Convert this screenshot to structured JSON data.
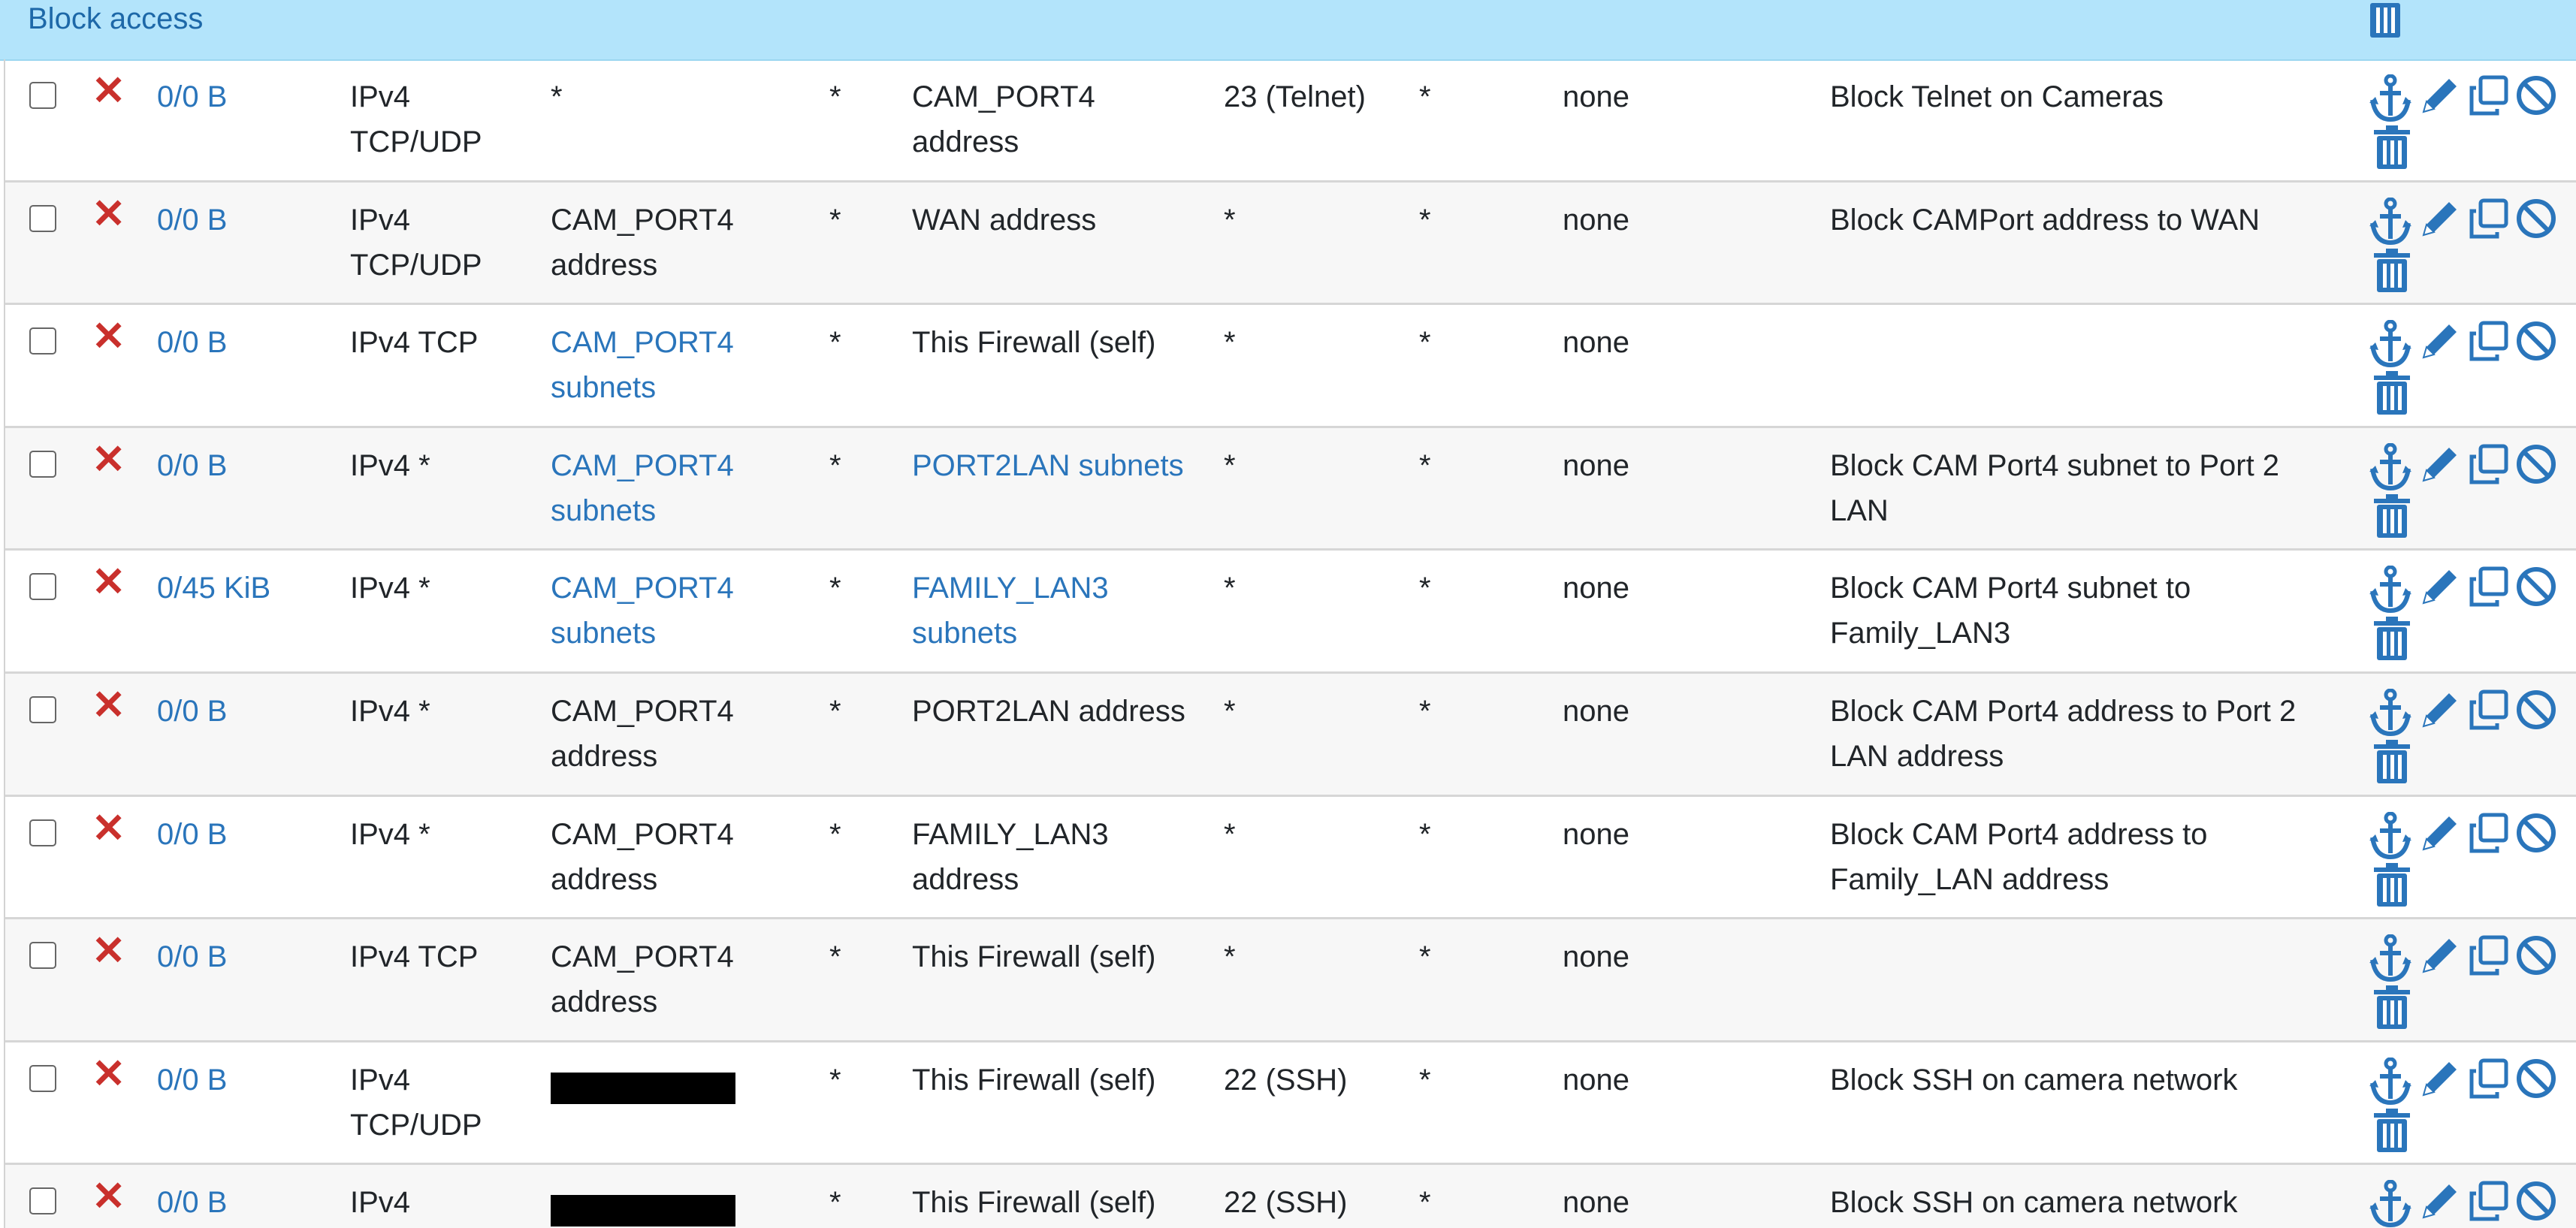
{
  "group": {
    "title": "Block access"
  },
  "icons": {
    "block": "x-icon",
    "anchor": "anchor-icon",
    "edit": "pencil-icon",
    "copy": "copy-icon",
    "disable": "ban-icon",
    "delete": "trash-icon"
  },
  "colors": {
    "accent": "#2a75bb",
    "block": "#c9302c",
    "header_bg": "#b3e4fb"
  },
  "rows": [
    {
      "states": "0/0 B",
      "protocol": "IPv4 TCP/UDP",
      "source": "*",
      "source_link": false,
      "port": "*",
      "destination": "CAM_PORT4 address",
      "dest_link": false,
      "dport": "23 (Telnet)",
      "gateway": "*",
      "queue": "none",
      "schedule": "",
      "description": "Block Telnet on Cameras"
    },
    {
      "states": "0/0 B",
      "protocol": "IPv4 TCP/UDP",
      "source": "CAM_PORT4 address",
      "source_link": false,
      "port": "*",
      "destination": "WAN address",
      "dest_link": false,
      "dport": "*",
      "gateway": "*",
      "queue": "none",
      "schedule": "",
      "description": "Block CAMPort address to WAN"
    },
    {
      "states": "0/0 B",
      "protocol": "IPv4 TCP",
      "source": "CAM_PORT4 subnets",
      "source_link": true,
      "port": "*",
      "destination": "This Firewall (self)",
      "dest_link": false,
      "dport": "*",
      "gateway": "*",
      "queue": "none",
      "schedule": "",
      "description": ""
    },
    {
      "states": "0/0 B",
      "protocol": "IPv4 *",
      "source": "CAM_PORT4 subnets",
      "source_link": true,
      "port": "*",
      "destination": "PORT2LAN subnets",
      "dest_link": true,
      "dport": "*",
      "gateway": "*",
      "queue": "none",
      "schedule": "",
      "description": "Block CAM Port4 subnet to Port 2 LAN"
    },
    {
      "states": "0/45 KiB",
      "protocol": "IPv4 *",
      "source": "CAM_PORT4 subnets",
      "source_link": true,
      "port": "*",
      "destination": "FAMILY_LAN3 subnets",
      "dest_link": true,
      "dport": "*",
      "gateway": "*",
      "queue": "none",
      "schedule": "",
      "description": "Block CAM Port4 subnet to Family_LAN3"
    },
    {
      "states": "0/0 B",
      "protocol": "IPv4 *",
      "source": "CAM_PORT4 address",
      "source_link": false,
      "port": "*",
      "destination": "PORT2LAN address",
      "dest_link": false,
      "dport": "*",
      "gateway": "*",
      "queue": "none",
      "schedule": "",
      "description": "Block CAM Port4 address to Port 2 LAN address"
    },
    {
      "states": "0/0 B",
      "protocol": "IPv4 *",
      "source": "CAM_PORT4 address",
      "source_link": false,
      "port": "*",
      "destination": "FAMILY_LAN3 address",
      "dest_link": false,
      "dport": "*",
      "gateway": "*",
      "queue": "none",
      "schedule": "",
      "description": "Block CAM Port4 address to Family_LAN address"
    },
    {
      "states": "0/0 B",
      "protocol": "IPv4 TCP",
      "source": "CAM_PORT4 address",
      "source_link": false,
      "port": "*",
      "destination": "This Firewall (self)",
      "dest_link": false,
      "dport": "*",
      "gateway": "*",
      "queue": "none",
      "schedule": "",
      "description": ""
    },
    {
      "states": "0/0 B",
      "protocol": "IPv4 TCP/UDP",
      "source": "",
      "source_redacted": true,
      "source_link": false,
      "port": "*",
      "destination": "This Firewall (self)",
      "dest_link": false,
      "dport": "22 (SSH)",
      "gateway": "*",
      "queue": "none",
      "schedule": "",
      "description": "Block SSH on camera network"
    },
    {
      "states": "0/0 B",
      "protocol": "IPv4",
      "source": "",
      "source_redacted": true,
      "source_link": false,
      "port": "*",
      "destination": "This Firewall (self)",
      "dest_link": false,
      "dport": "22 (SSH)",
      "gateway": "*",
      "queue": "none",
      "schedule": "",
      "description": "Block SSH on camera network"
    }
  ]
}
